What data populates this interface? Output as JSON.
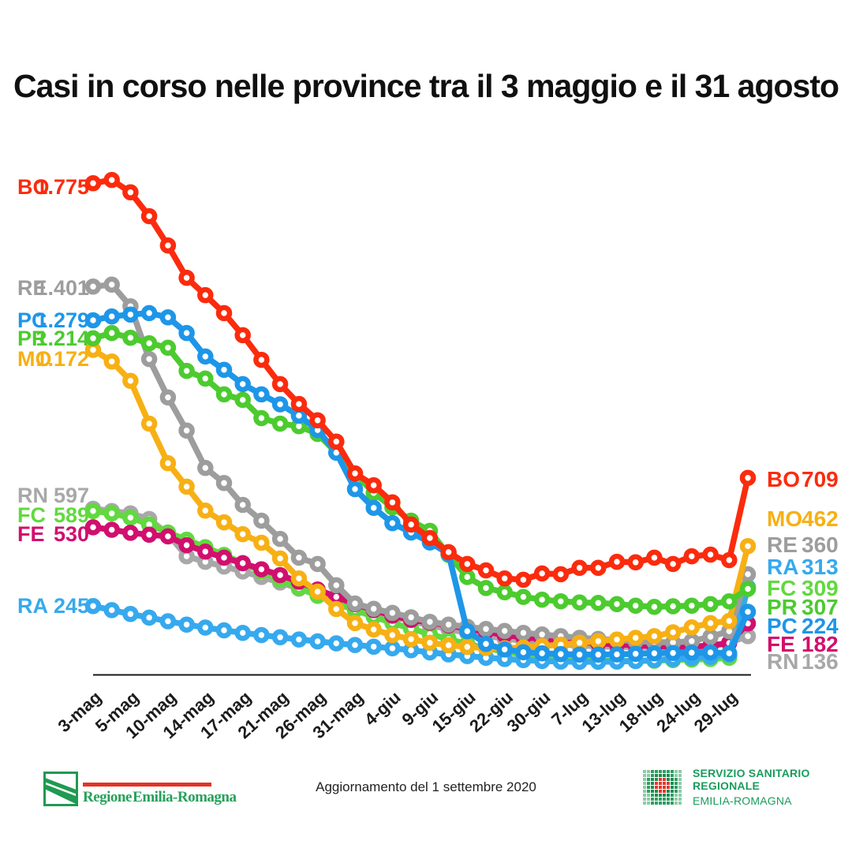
{
  "title": "Casi in corso nelle province tra il 3 maggio e il 31 agosto",
  "footer": {
    "region_logo_text": "Regione Emilia-Romagna",
    "update_text": "Aggiornamento del 1 settembre 2020",
    "ssr_line1": "SERVIZIO SANITARIO REGIONALE",
    "ssr_line2": "EMILIA-ROMAGNA"
  },
  "chart_data": {
    "type": "line",
    "title": "Casi in corso nelle province tra il 3 maggio e il 31 agosto",
    "grid": false,
    "ylim": [
      0,
      1900
    ],
    "x_tick_labels": [
      "3-mag",
      "5-mag",
      "10-mag",
      "14-mag",
      "17-mag",
      "21-mag",
      "26-mag",
      "31-mag",
      "4-giu",
      "9-giu",
      "15-giu",
      "22-giu",
      "30-giu",
      "7-lug",
      "13-lug",
      "18-lug",
      "24-lug",
      "29-lug"
    ],
    "axis_color": "#1a1a1a",
    "series": [
      {
        "name": "RN",
        "color": "#a8a8a8",
        "left_label": "RN",
        "left_value": "597",
        "right_label": "RN",
        "right_value": "136",
        "left_y": 628,
        "right_y": 838,
        "values": [
          597,
          589,
          580,
          560,
          505,
          425,
          405,
          388,
          370,
          350,
          330,
          308,
          287,
          265,
          244,
          225,
          207,
          190,
          175,
          161,
          148,
          137,
          127,
          119,
          112,
          106,
          102,
          99,
          97,
          96,
          95,
          95,
          96,
          99,
          112,
          136
        ]
      },
      {
        "name": "FC",
        "color": "#61d93f",
        "left_label": "FC",
        "left_value": "589",
        "right_label": "FC",
        "right_value": "309",
        "left_y": 653,
        "right_y": 745,
        "values": [
          589,
          580,
          565,
          540,
          511,
          485,
          458,
          430,
          400,
          370,
          340,
          310,
          282,
          255,
          230,
          206,
          184,
          163,
          143,
          125,
          108,
          93,
          80,
          69,
          60,
          54,
          50,
          47,
          46,
          46,
          47,
          49,
          51,
          53,
          58,
          309
        ]
      },
      {
        "name": "FE",
        "color": "#d10f6e",
        "left_label": "FE",
        "left_value": "530",
        "right_label": "FE",
        "right_value": "182",
        "left_y": 677,
        "right_y": 816,
        "values": [
          530,
          521,
          510,
          503,
          497,
          465,
          442,
          420,
          400,
          378,
          357,
          333,
          305,
          278,
          252,
          230,
          210,
          195,
          185,
          175,
          163,
          152,
          140,
          132,
          126,
          120,
          115,
          110,
          106,
          103,
          100,
          98,
          98,
          102,
          111,
          182
        ]
      },
      {
        "name": "RA",
        "color": "#36a9ee",
        "left_label": "RA",
        "left_value": "245",
        "right_label": "RA",
        "right_value": "313",
        "left_y": 768,
        "right_y": 718,
        "values": [
          245,
          230,
          216,
          203,
          190,
          178,
          167,
          157,
          148,
          140,
          132,
          124,
          117,
          110,
          104,
          98,
          92,
          85,
          77,
          70,
          64,
          58,
          53,
          49,
          46,
          44,
          43,
          43,
          44,
          46,
          49,
          53,
          57,
          61,
          69,
          313
        ]
      },
      {
        "name": "RE",
        "color": "#9d9d9d",
        "left_label": "RE",
        "left_value": "1.401",
        "right_label": "RE",
        "right_value": "360",
        "left_y": 365,
        "right_y": 690,
        "values": [
          1401,
          1408,
          1330,
          1139,
          1000,
          880,
          745,
          690,
          611,
          554,
          488,
          420,
          397,
          320,
          254,
          235,
          220,
          204,
          188,
          178,
          170,
          162,
          155,
          148,
          142,
          136,
          130,
          126,
          122,
          118,
          115,
          113,
          118,
          134,
          154,
          360
        ]
      },
      {
        "name": "MO",
        "color": "#f7b014",
        "left_label": "MO",
        "left_value": "1.172",
        "right_label": "MO",
        "right_value": "462",
        "left_y": 455,
        "right_y": 657,
        "values": [
          1172,
          1130,
          1060,
          905,
          762,
          677,
          590,
          548,
          505,
          474,
          417,
          345,
          297,
          234,
          183,
          160,
          140,
          125,
          112,
          103,
          97,
          93,
          92,
          95,
          100,
          105,
          112,
          118,
          124,
          130,
          136,
          150,
          168,
          183,
          191,
          462
        ]
      },
      {
        "name": "PR",
        "color": "#4ccb2f",
        "left_label": "PR",
        "left_value": "1.214",
        "right_label": "PR",
        "right_value": "307",
        "left_y": 429,
        "right_y": 769,
        "values": [
          1214,
          1233,
          1216,
          1196,
          1180,
          1096,
          1068,
          1011,
          991,
          925,
          905,
          896,
          868,
          800,
          725,
          654,
          602,
          554,
          517,
          430,
          350,
          310,
          295,
          278,
          268,
          262,
          258,
          256,
          252,
          246,
          242,
          244,
          246,
          252,
          262,
          307
        ]
      },
      {
        "name": "PC",
        "color": "#1e96e8",
        "left_label": "PC",
        "left_value": "1.279",
        "right_label": "PC",
        "right_value": "224",
        "left_y": 406,
        "right_y": 793,
        "values": [
          1279,
          1293,
          1300,
          1305,
          1290,
          1233,
          1148,
          1100,
          1048,
          1011,
          975,
          934,
          882,
          800,
          668,
          600,
          545,
          511,
          475,
          434,
          154,
          108,
          88,
          78,
          74,
          71,
          69,
          69,
          70,
          72,
          74,
          75,
          76,
          77,
          74,
          224
        ]
      },
      {
        "name": "BO",
        "color": "#fb2b0d",
        "left_label": "BO",
        "left_value": "1.775",
        "right_label": "BO",
        "right_value": "709",
        "left_y": 237,
        "right_y": 607,
        "values": [
          1775,
          1787,
          1742,
          1656,
          1550,
          1433,
          1370,
          1305,
          1225,
          1136,
          1048,
          976,
          917,
          840,
          725,
          682,
          620,
          540,
          491,
          440,
          397,
          374,
          345,
          340,
          363,
          360,
          383,
          383,
          405,
          403,
          420,
          397,
          425,
          431,
          411,
          709
        ]
      }
    ]
  },
  "ssr_icon_pattern": [
    "llggggggll",
    "llgGGGGgll",
    "lgGGrrGGgl",
    "lgGrrrrGgl",
    "lgGrrrrGgl",
    "lgGGrrGGgl",
    "llgGGGGgll",
    "llggggggll",
    "llggggggll"
  ],
  "ssr_icon_colors": {
    "g": "#2e9e63",
    "G": "#1d8a50",
    "r": "#e03a2f",
    "l": "#8fc9a8"
  }
}
